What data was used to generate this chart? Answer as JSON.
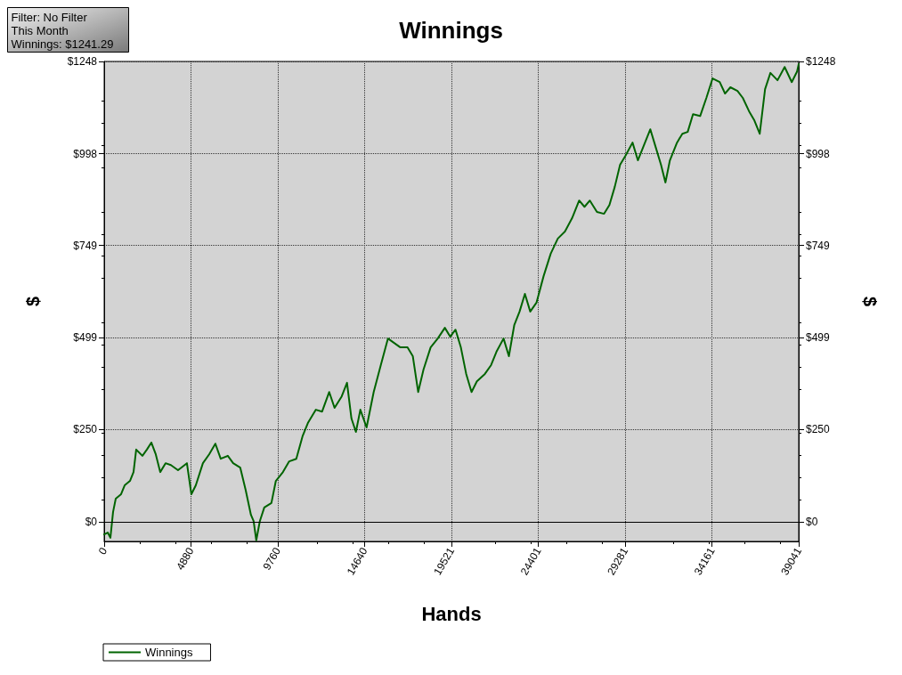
{
  "chart_data": {
    "type": "line",
    "title": "Winnings",
    "xlabel": "Hands",
    "ylabel": "$",
    "y2label": "$",
    "annotations": [
      "Filter: No Filter",
      "This Month",
      "Winnings: $1241.29"
    ],
    "xlim": [
      0,
      39041
    ],
    "xticks": [
      0,
      4880,
      9760,
      14640,
      19521,
      24401,
      29281,
      34161,
      39041
    ],
    "ylim": [
      -53,
      1248
    ],
    "yticks": [
      {
        "value": 0,
        "label": "$0"
      },
      {
        "value": 250,
        "label": "$250"
      },
      {
        "value": 499,
        "label": "$499"
      },
      {
        "value": 749,
        "label": "$749"
      },
      {
        "value": 998,
        "label": "$998"
      },
      {
        "value": 1248,
        "label": "$1248"
      }
    ],
    "y2lim": [
      -53,
      1248
    ],
    "y2ticks": [
      {
        "value": 0,
        "label": "$0"
      },
      {
        "value": 250,
        "label": "$250"
      },
      {
        "value": 499,
        "label": "$499"
      },
      {
        "value": 749,
        "label": "$749"
      },
      {
        "value": 998,
        "label": "$998"
      },
      {
        "value": 1248,
        "label": "$1248"
      }
    ],
    "grid": true,
    "legend": "bottom left",
    "marker": "none",
    "line_style": "solid",
    "ref_lines": [
      {
        "axis": "y",
        "value": 0,
        "color": "#000000"
      }
    ],
    "series": [
      {
        "name": "Winnings",
        "color": "#006400",
        "x": [
          0,
          200,
          350,
          500,
          650,
          950,
          1150,
          1450,
          1650,
          1800,
          2150,
          2400,
          2650,
          2900,
          3150,
          3450,
          3750,
          4150,
          4650,
          4900,
          5150,
          5550,
          5900,
          6250,
          6550,
          6950,
          7250,
          7650,
          7950,
          8250,
          8400,
          8550,
          8750,
          9000,
          9400,
          9650,
          10050,
          10400,
          10800,
          11150,
          11450,
          11900,
          12250,
          12650,
          12950,
          13350,
          13650,
          13900,
          14150,
          14400,
          14750,
          15150,
          15550,
          15950,
          16300,
          16650,
          17050,
          17350,
          17650,
          17950,
          18350,
          18750,
          19150,
          19450,
          19750,
          20050,
          20350,
          20650,
          20950,
          21400,
          21750,
          22050,
          22450,
          22750,
          23050,
          23350,
          23650,
          23950,
          24300,
          24700,
          25100,
          25500,
          25900,
          26300,
          26700,
          27000,
          27300,
          27700,
          28100,
          28400,
          28700,
          29000,
          29300,
          29700,
          30000,
          30300,
          30700,
          31000,
          31300,
          31550,
          31800,
          32200,
          32500,
          32800,
          33100,
          33500,
          33850,
          34200,
          34600,
          34900,
          35200,
          35600,
          35900,
          36250,
          36550,
          36850,
          37150,
          37450,
          37850,
          38250,
          38650,
          38950,
          39041
        ],
        "values": [
          -34,
          -29,
          -43,
          27,
          63,
          75,
          99,
          111,
          135,
          196,
          179,
          196,
          215,
          183,
          135,
          159,
          154,
          140,
          159,
          75,
          99,
          159,
          183,
          212,
          171,
          179,
          159,
          147,
          87,
          19,
          2,
          -50,
          2,
          39,
          51,
          111,
          135,
          164,
          171,
          232,
          268,
          304,
          299,
          352,
          309,
          340,
          377,
          280,
          244,
          304,
          256,
          352,
          425,
          497,
          485,
          473,
          473,
          449,
          352,
          413,
          473,
          497,
          526,
          502,
          521,
          473,
          401,
          352,
          381,
          401,
          425,
          461,
          497,
          449,
          533,
          570,
          618,
          570,
          594,
          666,
          727,
          768,
          787,
          823,
          871,
          854,
          871,
          840,
          835,
          859,
          908,
          968,
          992,
          1028,
          980,
          1016,
          1064,
          1016,
          968,
          920,
          980,
          1028,
          1052,
          1057,
          1105,
          1100,
          1149,
          1202,
          1192,
          1161,
          1178,
          1168,
          1149,
          1113,
          1088,
          1052,
          1173,
          1217,
          1197,
          1233,
          1192,
          1221,
          1241
        ]
      }
    ]
  }
}
